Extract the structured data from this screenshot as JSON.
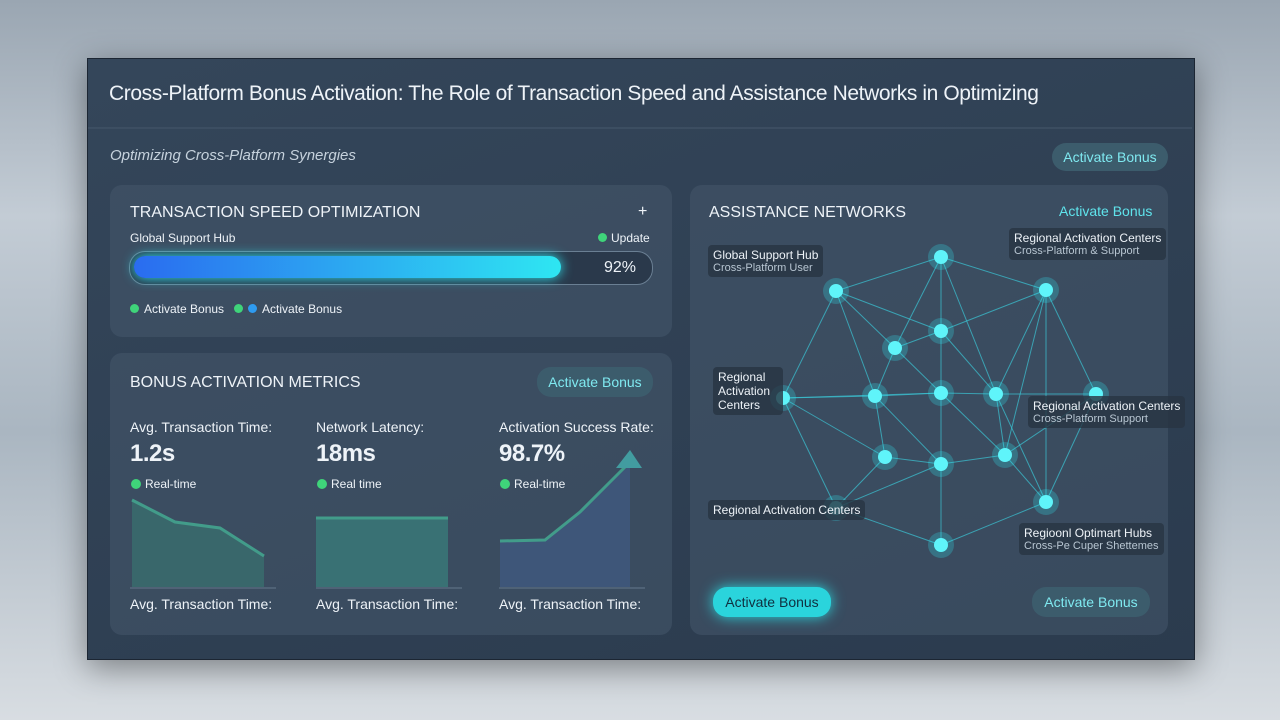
{
  "header": {
    "title": "Cross-Platform Bonus Activation: The Role of Transaction Speed and Assistance Networks in Optimizing",
    "subtitle": "Optimizing Cross-Platform Synergies",
    "button": "Activate Bonus"
  },
  "speed": {
    "title": "TRANSACTION SPEED OPTIMIZATION",
    "plus": "+",
    "hub": "Global Support Hub",
    "status": "Update",
    "progress": {
      "value": 92,
      "label": "92%"
    },
    "legend": [
      "Activate Bonus",
      "Activate Bonus"
    ]
  },
  "metrics": {
    "title": "BONUS ACTIVATION METRICS",
    "button": "Activate Bonus",
    "items": [
      {
        "label": "Avg. Transaction Time:",
        "value": "1.2s",
        "status": "Real-time",
        "footer": "Avg. Transaction Time:"
      },
      {
        "label": "Network Latency:",
        "value": "18ms",
        "status": "Real time",
        "footer": "Avg. Transaction Time:"
      },
      {
        "label": "Activation Success Rate:",
        "value": "98.7%",
        "status": "Real-time",
        "footer": "Avg. Transaction Time:"
      }
    ]
  },
  "network": {
    "title": "ASSISTANCE NETWORKS",
    "link": "Activate Bonus",
    "labels": [
      {
        "title": "Global Support Hub",
        "sub": "Cross-Platform User"
      },
      {
        "title": "Regional Activation Centers",
        "sub": "Cross-Platform & Support"
      },
      {
        "title": "Regional Activation Centers"
      },
      {
        "title": "Regional Activation Centers",
        "sub": "Cross-Platform Support"
      },
      {
        "title": "Regional Activation Centers"
      },
      {
        "title": "Regioonl Optimart Hubs",
        "sub": "Cross-Pe Cuper Shettemes"
      }
    ],
    "buttons": [
      "Activate Bonus",
      "Activate Bonus"
    ]
  }
}
